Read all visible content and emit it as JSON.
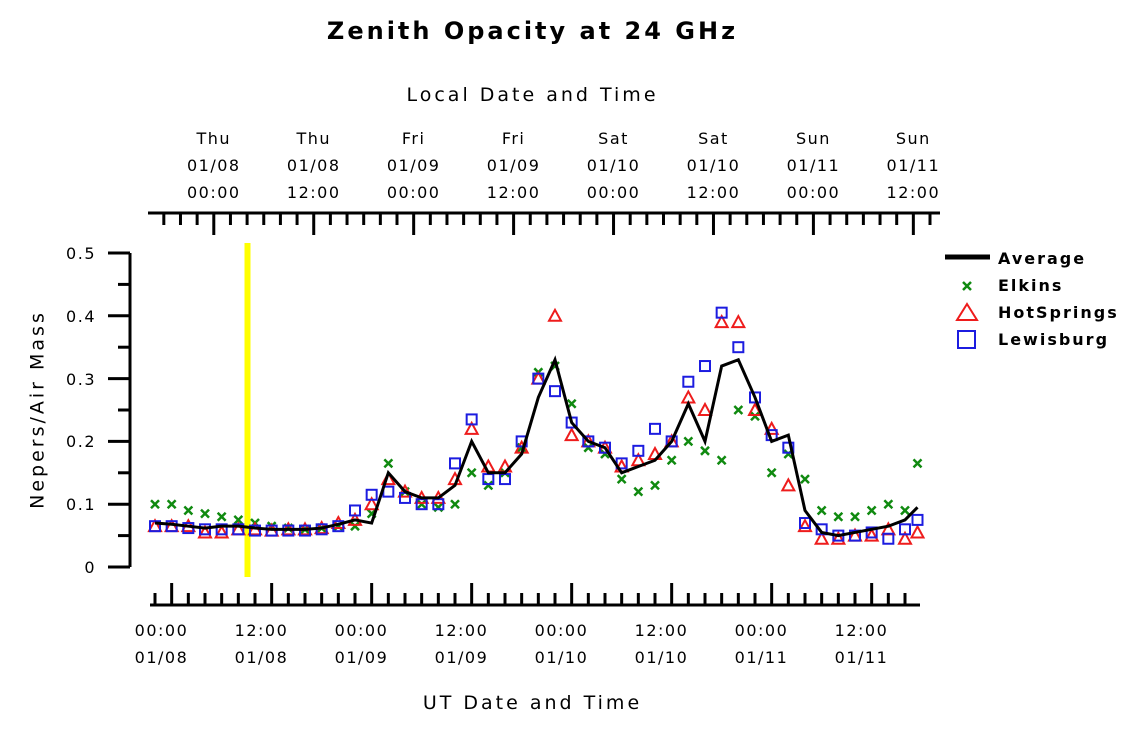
{
  "chart_data": {
    "type": "line",
    "title": "Zenith Opacity at 24 GHz",
    "x2label": "Local Date and Time",
    "xlabel": "UT Date and Time",
    "ylabel": "Nepers/Air Mass",
    "x": [
      -2,
      0,
      2,
      4,
      6,
      8,
      10,
      12,
      14,
      16,
      18,
      20,
      22,
      24,
      26,
      28,
      30,
      32,
      34,
      36,
      38,
      40,
      42,
      44,
      46,
      48,
      50,
      52,
      54,
      56,
      58,
      60,
      62,
      64,
      66,
      68,
      70,
      72,
      74,
      76,
      78,
      80,
      82,
      84,
      86,
      88,
      89.5
    ],
    "series": [
      {
        "name": "Average",
        "color": "#000000",
        "marker": "line",
        "values": [
          0.07,
          0.068,
          0.065,
          0.062,
          0.065,
          0.065,
          0.062,
          0.06,
          0.06,
          0.06,
          0.062,
          0.068,
          0.075,
          0.07,
          0.15,
          0.12,
          0.11,
          0.11,
          0.13,
          0.2,
          0.15,
          0.15,
          0.18,
          0.27,
          0.33,
          0.23,
          0.2,
          0.19,
          0.15,
          0.16,
          0.17,
          0.2,
          0.26,
          0.2,
          0.32,
          0.33,
          0.27,
          0.2,
          0.21,
          0.09,
          0.055,
          0.05,
          0.055,
          0.06,
          0.065,
          0.075,
          0.095
        ]
      },
      {
        "name": "Elkins",
        "color": "#108a10",
        "marker": "x",
        "values": [
          0.1,
          0.1,
          0.09,
          0.085,
          0.08,
          0.075,
          0.07,
          0.065,
          0.062,
          0.06,
          0.062,
          0.065,
          0.065,
          0.085,
          0.165,
          0.12,
          0.1,
          0.095,
          0.1,
          0.15,
          0.13,
          0.15,
          0.19,
          0.31,
          0.32,
          0.26,
          0.19,
          0.18,
          0.14,
          0.12,
          0.13,
          0.17,
          0.2,
          0.185,
          0.17,
          0.25,
          0.24,
          0.15,
          0.18,
          0.14,
          0.09,
          0.08,
          0.08,
          0.09,
          0.1,
          0.09,
          0.165
        ]
      },
      {
        "name": "HotSprings",
        "color": "#ee1c1c",
        "marker": "triangle",
        "values": [
          0.065,
          0.065,
          0.065,
          0.055,
          0.055,
          0.06,
          0.06,
          0.058,
          0.06,
          0.06,
          0.062,
          0.07,
          0.075,
          0.1,
          0.14,
          0.12,
          0.11,
          0.11,
          0.14,
          0.22,
          0.16,
          0.16,
          0.19,
          0.3,
          0.4,
          0.21,
          0.2,
          0.19,
          0.16,
          0.17,
          0.18,
          0.2,
          0.27,
          0.25,
          0.39,
          0.39,
          0.25,
          0.22,
          0.13,
          0.065,
          0.045,
          0.045,
          0.05,
          0.05,
          0.06,
          0.045,
          0.055
        ]
      },
      {
        "name": "Lewisburg",
        "color": "#1c1ce0",
        "marker": "square",
        "values": [
          0.065,
          0.065,
          0.062,
          0.06,
          0.06,
          0.06,
          0.058,
          0.058,
          0.058,
          0.058,
          0.06,
          0.065,
          0.09,
          0.115,
          0.12,
          0.11,
          0.1,
          0.1,
          0.165,
          0.235,
          0.14,
          0.14,
          0.2,
          0.3,
          0.28,
          0.23,
          0.2,
          0.19,
          0.165,
          0.185,
          0.22,
          0.2,
          0.295,
          0.32,
          0.405,
          0.35,
          0.27,
          0.21,
          0.19,
          0.07,
          0.06,
          0.05,
          0.05,
          0.055,
          0.045,
          0.06,
          0.075
        ]
      }
    ],
    "xlim": [
      -2.6,
      89.8
    ],
    "xticks": [
      {
        "value": 0,
        "label": "00:00\n01/08"
      },
      {
        "value": 12,
        "label": "12:00\n01/08"
      },
      {
        "value": 24,
        "label": "00:00\n01/09"
      },
      {
        "value": 36,
        "label": "12:00\n01/09"
      },
      {
        "value": 48,
        "label": "00:00\n01/10"
      },
      {
        "value": 60,
        "label": "12:00\n01/10"
      },
      {
        "value": 72,
        "label": "00:00\n01/11"
      },
      {
        "value": 84,
        "label": "12:00\n01/11"
      }
    ],
    "xminorticks": [
      -2,
      2,
      4,
      6,
      8,
      10,
      14,
      16,
      18,
      20,
      22,
      26,
      28,
      30,
      32,
      34,
      38,
      40,
      42,
      44,
      46,
      50,
      52,
      54,
      56,
      58,
      62,
      64,
      66,
      68,
      70,
      74,
      76,
      78,
      80,
      82,
      86,
      88
    ],
    "x2lim": [
      -7.9,
      87.2
    ],
    "x2ticks": [
      {
        "value": 0,
        "label": "Thu\n01/08\n00:00"
      },
      {
        "value": 12,
        "label": "Thu\n01/08\n12:00"
      },
      {
        "value": 24,
        "label": "Fri\n01/09\n00:00"
      },
      {
        "value": 36,
        "label": "Fri\n01/09\n12:00"
      },
      {
        "value": 48,
        "label": "Sat\n01/10\n00:00"
      },
      {
        "value": 60,
        "label": "Sat\n01/10\n12:00"
      },
      {
        "value": 72,
        "label": "Sun\n01/11\n00:00"
      },
      {
        "value": 84,
        "label": "Sun\n01/11\n12:00"
      }
    ],
    "x2minorticks": [
      -6,
      -4,
      -2,
      2,
      4,
      6,
      8,
      10,
      14,
      16,
      18,
      20,
      22,
      26,
      28,
      30,
      32,
      34,
      38,
      40,
      42,
      44,
      46,
      50,
      52,
      54,
      56,
      58,
      62,
      64,
      66,
      68,
      70,
      74,
      76,
      78,
      80,
      82,
      86
    ],
    "ylim": [
      0,
      0.5
    ],
    "yticks": [
      0,
      0.1,
      0.2,
      0.3,
      0.4,
      0.5
    ],
    "yminorticks": [
      0.05,
      0.15,
      0.25,
      0.35,
      0.45
    ],
    "vline": {
      "x": 9.1,
      "color": "#ffff00"
    }
  }
}
